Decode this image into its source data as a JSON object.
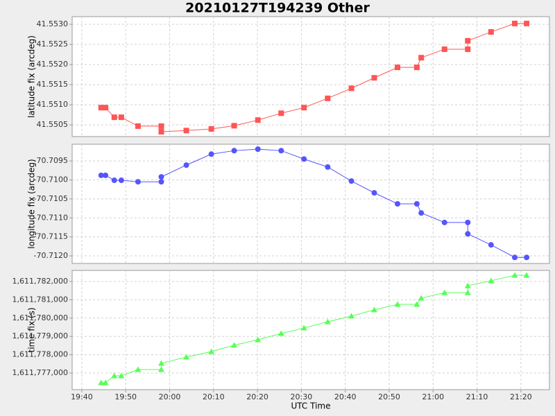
{
  "chart_data": [
    {
      "type": "line",
      "title": "20210127T194239 Other",
      "y_label": "latitude fix (arcdeg)",
      "marker": "square",
      "color": "#ff5555",
      "x": [
        1184.4,
        1185.4,
        1187.4,
        1189.0,
        1192.8,
        1198.1,
        1198.1,
        1203.8,
        1209.5,
        1214.7,
        1220.1,
        1225.4,
        1230.6,
        1236.0,
        1241.4,
        1246.6,
        1251.9,
        1256.3,
        1257.3,
        1262.6,
        1267.9,
        1267.9,
        1273.2,
        1278.6,
        1281.3
      ],
      "values": [
        41.55093,
        41.55093,
        41.55069,
        41.55069,
        41.55047,
        41.55047,
        41.55033,
        41.55036,
        41.5504,
        41.55048,
        41.55062,
        41.55079,
        41.55093,
        41.55116,
        41.55141,
        41.55167,
        41.55193,
        41.55193,
        41.55217,
        41.55238,
        41.55238,
        41.55259,
        41.55281,
        41.55302,
        41.55302
      ],
      "xlim": [
        1177.8,
        1286.5
      ],
      "ylim": [
        41.55021,
        41.55319
      ],
      "yticks": [
        41.5505,
        {
          "value": 41.551,
          "label": "41.5510"
        },
        41.5515,
        {
          "value": 41.552,
          "label": "41.5520"
        },
        41.5525,
        {
          "value": 41.553,
          "label": "41.5530"
        }
      ],
      "grid": true
    },
    {
      "type": "line",
      "y_label": "longitude fix (arcdeg)",
      "marker": "circle",
      "color": "#5555ff",
      "x": [
        1184.4,
        1185.4,
        1187.4,
        1189.0,
        1192.8,
        1198.1,
        1198.1,
        1203.8,
        1209.5,
        1214.7,
        1220.1,
        1225.4,
        1230.6,
        1236.0,
        1241.4,
        1246.6,
        1251.9,
        1256.3,
        1257.3,
        1262.6,
        1267.9,
        1267.9,
        1273.2,
        1278.6,
        1281.3
      ],
      "values": [
        -70.70988,
        -70.70988,
        -70.71001,
        -70.71001,
        -70.71005,
        -70.71005,
        -70.70992,
        -70.70961,
        -70.70932,
        -70.70923,
        -70.70919,
        -70.70923,
        -70.70945,
        -70.70966,
        -70.71003,
        -70.71034,
        -70.71063,
        -70.71063,
        -70.71087,
        -70.71112,
        -70.71112,
        -70.71142,
        -70.71171,
        -70.71204,
        -70.71204
      ],
      "xlim": [
        1177.8,
        1286.5
      ],
      "ylim": [
        -70.7122,
        -70.70906
      ],
      "yticks": [
        {
          "value": -70.712,
          "label": "-70.7120"
        },
        -70.7115,
        {
          "value": -70.711,
          "label": "-70.7110"
        },
        -70.7105,
        {
          "value": -70.71,
          "label": "-70.7100"
        },
        -70.7095
      ],
      "grid": true
    },
    {
      "type": "line",
      "y_label": "time fix (s)",
      "x_label": "UTC Time",
      "marker": "triangle",
      "color": "#55ff55",
      "x": [
        1184.4,
        1185.4,
        1187.4,
        1189.0,
        1192.8,
        1198.1,
        1198.1,
        1203.8,
        1209.5,
        1214.7,
        1220.1,
        1225.4,
        1230.6,
        1236.0,
        1241.4,
        1246.6,
        1251.9,
        1256.3,
        1257.3,
        1262.6,
        1267.9,
        1267.9,
        1273.2,
        1278.6,
        1281.3
      ],
      "values": [
        1611776470,
        1611776470,
        1611776850,
        1611776850,
        1611777190,
        1611777190,
        1611777530,
        1611777870,
        1611778170,
        1611778520,
        1611778820,
        1611779160,
        1611779460,
        1611779800,
        1611780110,
        1611780450,
        1611780750,
        1611780750,
        1611781090,
        1611781390,
        1611781390,
        1611781770,
        1611782040,
        1611782340,
        1611782340
      ],
      "xlim": [
        1177.8,
        1286.5
      ],
      "ylim": [
        1611776091,
        1611782606
      ],
      "yticks": [
        {
          "value": 1611777000,
          "label": "1,611,777,000"
        },
        {
          "value": 1611778000,
          "label": "1,611,778,000"
        },
        {
          "value": 1611779000,
          "label": "1,611,779,000"
        },
        {
          "value": 1611780000,
          "label": "1,611,780,000"
        },
        {
          "value": 1611781000,
          "label": "1,611,781,000"
        },
        {
          "value": 1611782000,
          "label": "1,611,782,000"
        }
      ],
      "xticks": [
        {
          "value": 1180,
          "label": "19:40"
        },
        {
          "value": 1190,
          "label": "19:50"
        },
        {
          "value": 1200,
          "label": "20:00"
        },
        {
          "value": 1210,
          "label": "20:10"
        },
        {
          "value": 1220,
          "label": "20:20"
        },
        {
          "value": 1230,
          "label": "20:30"
        },
        {
          "value": 1240,
          "label": "20:40"
        },
        {
          "value": 1250,
          "label": "20:50"
        },
        {
          "value": 1260,
          "label": "21:00"
        },
        {
          "value": 1270,
          "label": "21:10"
        },
        {
          "value": 1280,
          "label": "21:20"
        }
      ],
      "grid": true
    }
  ]
}
